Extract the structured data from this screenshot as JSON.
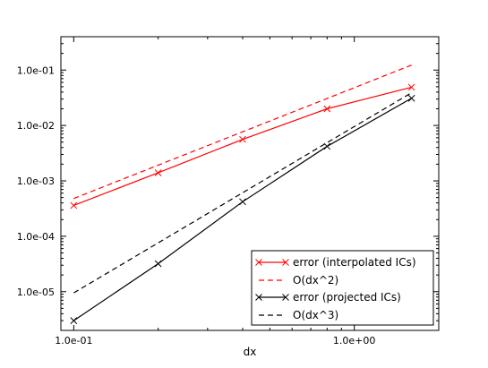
{
  "chart_data": {
    "type": "line",
    "title": "",
    "xlabel": "dx",
    "ylabel": "",
    "xscale": "log",
    "yscale": "log",
    "xlim": [
      0.09,
      2.0
    ],
    "ylim": [
      2e-06,
      0.4
    ],
    "xticks": [
      {
        "value": 0.1,
        "label": "1.0e-01"
      },
      {
        "value": 1.0,
        "label": "1.0e+00"
      }
    ],
    "yticks": [
      {
        "value": 1e-05,
        "label": "1.0e-05"
      },
      {
        "value": 0.0001,
        "label": "1.0e-04"
      },
      {
        "value": 0.001,
        "label": "1.0e-03"
      },
      {
        "value": 0.01,
        "label": "1.0e-02"
      },
      {
        "value": 0.1,
        "label": "1.0e-01"
      }
    ],
    "grid": false,
    "legend_position": "lower-right",
    "series": [
      {
        "name": "error (interpolated ICs)",
        "color": "#ff0000",
        "dashed": false,
        "marker": "x",
        "x": [
          0.1,
          0.2,
          0.4,
          0.8,
          1.6
        ],
        "y": [
          0.00036,
          0.0014,
          0.0056,
          0.02,
          0.049
        ]
      },
      {
        "name": "O(dx^2)",
        "color": "#ff0000",
        "dashed": true,
        "marker": "none",
        "x": [
          0.1,
          0.2,
          0.4,
          0.8,
          1.6
        ],
        "y": [
          0.00048,
          0.00192,
          0.00768,
          0.0307,
          0.123
        ]
      },
      {
        "name": "error (projected ICs)",
        "color": "#000000",
        "dashed": false,
        "marker": "x",
        "x": [
          0.1,
          0.2,
          0.4,
          0.8,
          1.6
        ],
        "y": [
          3e-06,
          3.2e-05,
          0.00042,
          0.0042,
          0.031
        ]
      },
      {
        "name": "O(dx^3)",
        "color": "#000000",
        "dashed": true,
        "marker": "none",
        "x": [
          0.1,
          0.2,
          0.4,
          0.8,
          1.6
        ],
        "y": [
          9.5e-06,
          7.6e-05,
          0.00061,
          0.0049,
          0.0389
        ]
      }
    ]
  }
}
